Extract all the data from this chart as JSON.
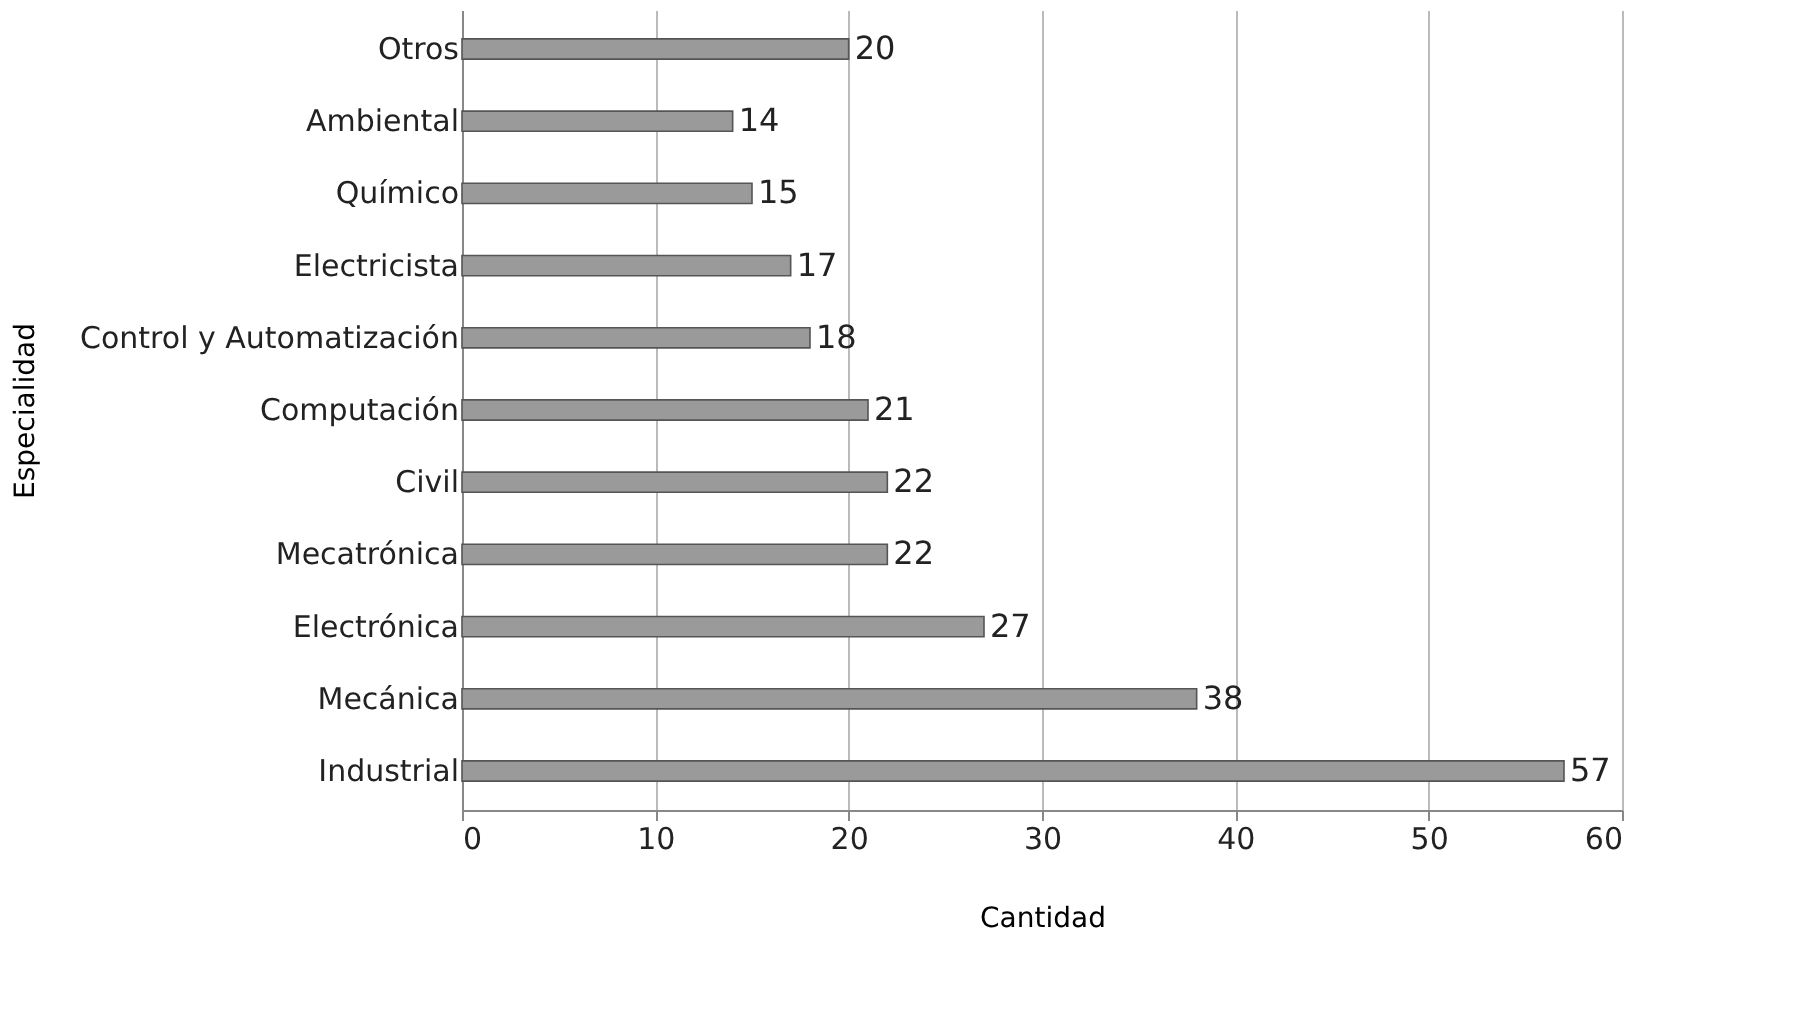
{
  "chart_data": {
    "type": "bar",
    "orientation": "horizontal",
    "categories": [
      "Otros",
      "Ambiental",
      "Químico",
      "Electricista",
      "Control y Automatización",
      "Computación",
      "Civil",
      "Mecatrónica",
      "Electrónica",
      "Mecánica",
      "Industrial"
    ],
    "values": [
      20,
      14,
      15,
      17,
      18,
      21,
      22,
      22,
      27,
      38,
      57
    ],
    "color": "#9a9a9a",
    "xlabel": "Cantidad",
    "ylabel": "Especialidad",
    "xlim": [
      0,
      60
    ],
    "xticks": [
      0,
      10,
      20,
      30,
      40,
      50,
      60
    ],
    "grid": "x",
    "data_labels": true
  }
}
